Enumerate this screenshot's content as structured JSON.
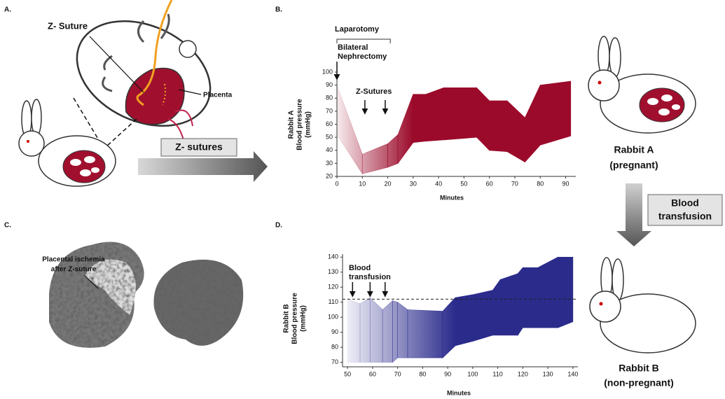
{
  "figure": {
    "panel_labels": [
      "A.",
      "B.",
      "C.",
      "D."
    ],
    "z_suture": "Z- Suture",
    "placenta": "Placenta",
    "z_sutures_box": "Z- sutures",
    "ischemia": [
      "Placental ischemia",
      "after Z-suture"
    ],
    "rabbit_a": [
      "Rabbit A",
      "(pregnant)"
    ],
    "transfusion": [
      "Blood",
      "transfusion"
    ],
    "rabbit_b": [
      "Rabbit B",
      "(non-pregnant)"
    ]
  },
  "chart_data": [
    {
      "type": "range_area",
      "ylabel": [
        "Rabbit A",
        "Blood pressure",
        "(mmHg)"
      ],
      "xlabel": "Minutes",
      "color": "#9b0a2a",
      "x": [
        0,
        10,
        20,
        24,
        30,
        35,
        42,
        55,
        60,
        67,
        74,
        80,
        92
      ],
      "high": [
        90,
        37,
        45,
        52,
        83,
        83,
        88,
        88,
        78,
        78,
        65,
        90,
        93
      ],
      "low": [
        52,
        22,
        27,
        30,
        46,
        47,
        48,
        50,
        40,
        39,
        31,
        44,
        51
      ],
      "xlim": [
        0,
        94
      ],
      "ylim": [
        20,
        100
      ],
      "xticks": [
        0,
        10,
        20,
        30,
        40,
        50,
        60,
        70,
        80,
        90
      ],
      "yticks": [
        20,
        30,
        40,
        50,
        60,
        70,
        80,
        90,
        100
      ],
      "annotations": [
        {
          "text": "Laparotomy",
          "span": [
            0,
            21
          ]
        },
        {
          "text": [
            "Bilateral",
            "Nephrectomy"
          ],
          "arrows": [
            0
          ]
        },
        {
          "text": "Z-Sutures",
          "arrows": [
            11,
            19
          ]
        }
      ]
    },
    {
      "type": "range_area",
      "ylabel": [
        "Rabbit B",
        "Blood pressure",
        "(mmHg)"
      ],
      "xlabel": "Minutes",
      "color": "#2b2b8c",
      "x": [
        50,
        55,
        59,
        64,
        68,
        70,
        74,
        88,
        93,
        100,
        108,
        111,
        118,
        120,
        126,
        134,
        140
      ],
      "high": [
        112,
        109,
        113,
        105,
        111,
        110,
        105,
        104,
        113,
        115,
        118,
        125,
        129,
        133,
        133,
        140,
        140
      ],
      "low": [
        70,
        70,
        70,
        70,
        70,
        73,
        73,
        73,
        81,
        84,
        88,
        88,
        88,
        93,
        93,
        93,
        97
      ],
      "ref_line": 112,
      "xlim": [
        48,
        142
      ],
      "ylim": [
        67,
        142
      ],
      "xticks": [
        50,
        60,
        70,
        80,
        90,
        100,
        110,
        120,
        130,
        140
      ],
      "yticks": [
        70,
        80,
        90,
        100,
        110,
        120,
        130,
        140
      ],
      "annotations": [
        {
          "text": [
            "Blood",
            "transfusion"
          ],
          "arrows": [
            52,
            59,
            65
          ]
        }
      ]
    }
  ]
}
